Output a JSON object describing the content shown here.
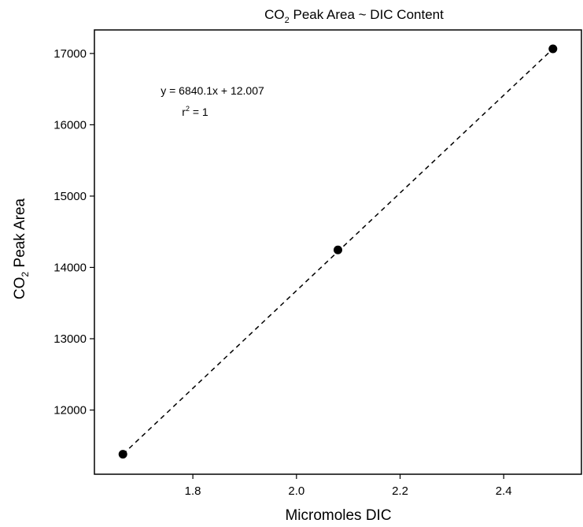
{
  "chart_data": {
    "type": "scatter",
    "title": {
      "main": "CO",
      "sub": "2",
      "rest": " Peak Area ~ DIC Content"
    },
    "xlabel": "Micromoles DIC",
    "ylabel": {
      "main": "CO",
      "sub": "2",
      "rest": " Peak Area"
    },
    "xlim": [
      1.61,
      2.55
    ],
    "ylim": [
      11100,
      17330
    ],
    "x_ticks": [
      1.8,
      2.0,
      2.2,
      2.4
    ],
    "x_tick_labels": [
      "1.8",
      "2.0",
      "2.2",
      "2.4"
    ],
    "y_ticks": [
      12000,
      13000,
      14000,
      15000,
      16000,
      17000
    ],
    "y_tick_labels": [
      "12000",
      "13000",
      "14000",
      "15000",
      "16000",
      "17000"
    ],
    "points": [
      {
        "x": 1.665,
        "y": 11380
      },
      {
        "x": 2.08,
        "y": 14245
      },
      {
        "x": 2.495,
        "y": 17065
      }
    ],
    "fit": {
      "style": "dashed",
      "from": {
        "x": 1.665,
        "y": 11380
      },
      "to": {
        "x": 2.495,
        "y": 17065
      }
    },
    "annotations": {
      "equation": "y = 6840.1x + 12.007",
      "r2": {
        "main": "r",
        "sup": "2",
        "rest": " = 1"
      }
    },
    "grid": false,
    "legend": "none"
  }
}
